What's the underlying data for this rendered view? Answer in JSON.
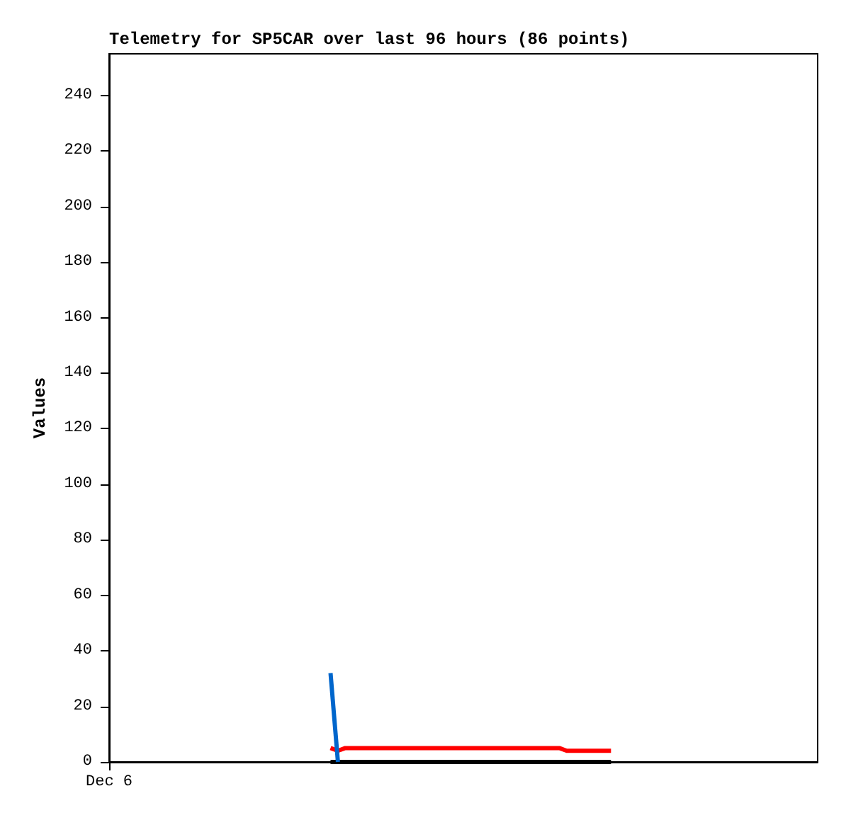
{
  "chart_data": {
    "type": "line",
    "title": "Telemetry for SP5CAR over last 96 hours (86 points)",
    "ylabel": "Values",
    "categories": [
      "Dec 6",
      null,
      null,
      null,
      null,
      null,
      null,
      null,
      null,
      null,
      null,
      null,
      null,
      null,
      null,
      null,
      null,
      null,
      null,
      null,
      null,
      null,
      null,
      null,
      null,
      null,
      null,
      null,
      null,
      null,
      null,
      null,
      null,
      null,
      null,
      null,
      null,
      null,
      null,
      null,
      null,
      null,
      null,
      null,
      null,
      null,
      null,
      null,
      null,
      null,
      null,
      null,
      null,
      null,
      null,
      null,
      null,
      null,
      null,
      null,
      null,
      null,
      null,
      null,
      null,
      null,
      null,
      null,
      null,
      null,
      null,
      null,
      null,
      null,
      null,
      null,
      null,
      null,
      null,
      null,
      null,
      null,
      null,
      null,
      null,
      null,
      null,
      null,
      null,
      null,
      null,
      null,
      null,
      null,
      null,
      null,
      null
    ],
    "ylim": [
      0,
      255
    ],
    "yticks": [
      0,
      20,
      40,
      60,
      80,
      100,
      120,
      140,
      160,
      180,
      200,
      220,
      240
    ],
    "grid": false,
    "marker": "none",
    "line_style": "solid",
    "series": [
      {
        "color": "#000000",
        "values": [
          null,
          null,
          null,
          null,
          null,
          null,
          null,
          null,
          null,
          null,
          null,
          null,
          null,
          null,
          null,
          null,
          null,
          null,
          null,
          null,
          null,
          null,
          null,
          null,
          null,
          null,
          null,
          null,
          null,
          null,
          0,
          0,
          0,
          0,
          0,
          0,
          0,
          0,
          0,
          0,
          0,
          0,
          0,
          0,
          0,
          0,
          0,
          0,
          0,
          0,
          0,
          0,
          0,
          0,
          0,
          0,
          0,
          0,
          0,
          0,
          0,
          0,
          0,
          0,
          0,
          0,
          0,
          0,
          0,
          null,
          null,
          null,
          null,
          null,
          null,
          null,
          null,
          null,
          null,
          null,
          null,
          null,
          null,
          null,
          null,
          null,
          null,
          null,
          null,
          null,
          null,
          null,
          null,
          null,
          null,
          null,
          null
        ]
      },
      {
        "color": "#ff0000",
        "values": [
          null,
          null,
          null,
          null,
          null,
          null,
          null,
          null,
          null,
          null,
          null,
          null,
          null,
          null,
          null,
          null,
          null,
          null,
          null,
          null,
          null,
          null,
          null,
          null,
          null,
          null,
          null,
          null,
          null,
          null,
          5,
          4,
          5,
          5,
          5,
          5,
          5,
          5,
          5,
          5,
          5,
          5,
          5,
          5,
          5,
          5,
          5,
          5,
          5,
          5,
          5,
          5,
          5,
          5,
          5,
          5,
          5,
          5,
          5,
          5,
          5,
          5,
          4,
          4,
          4,
          4,
          4,
          4,
          4,
          null,
          null,
          null,
          null,
          null,
          null,
          null,
          null,
          null,
          null,
          null,
          null,
          null,
          null,
          null,
          null,
          null,
          null,
          null,
          null,
          null,
          null,
          null,
          null,
          null,
          null,
          null,
          null
        ]
      },
      {
        "color": "#0066cc",
        "values": [
          null,
          null,
          null,
          null,
          null,
          null,
          null,
          null,
          null,
          null,
          null,
          null,
          null,
          null,
          null,
          null,
          null,
          null,
          null,
          null,
          null,
          null,
          null,
          null,
          null,
          null,
          null,
          null,
          null,
          null,
          32,
          0,
          null,
          null,
          null,
          null,
          null,
          null,
          null,
          null,
          null,
          null,
          null,
          null,
          null,
          null,
          null,
          null,
          null,
          null,
          null,
          null,
          null,
          null,
          null,
          null,
          null,
          null,
          null,
          null,
          null,
          null,
          null,
          null,
          null,
          null,
          null,
          null,
          null,
          null,
          null,
          null,
          null,
          null,
          null,
          null,
          null,
          null,
          null,
          null,
          null,
          null,
          null,
          null,
          null,
          null,
          null,
          null,
          null,
          null,
          null,
          null,
          null,
          null,
          null,
          null,
          null
        ]
      }
    ]
  }
}
